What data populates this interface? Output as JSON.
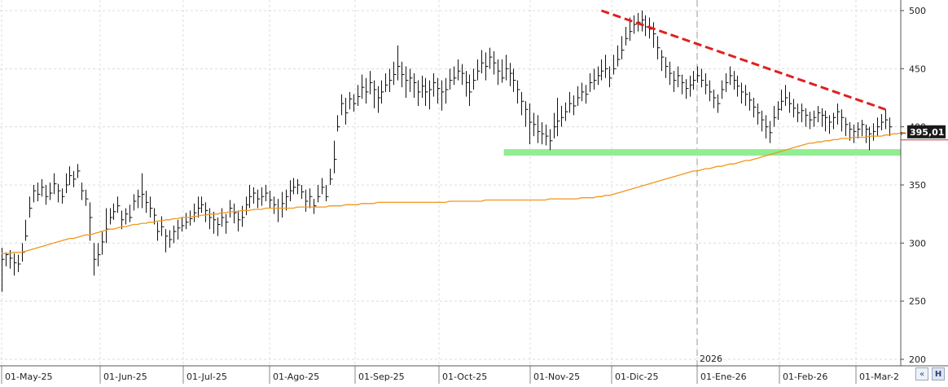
{
  "chart_data": {
    "type": "line",
    "price_style": "ohlc-bars",
    "x_tick_labels": [
      "01-May-25",
      "01-Jun-25",
      "01-Jul-25",
      "01-Ago-25",
      "01-Sep-25",
      "01-Oct-25",
      "01-Nov-25",
      "01-Dic-25",
      "01-Ene-26",
      "01-Feb-26",
      "01-Mar-2"
    ],
    "year_marker": "2026",
    "y_tick_labels": [
      "500",
      "450",
      "400",
      "350",
      "300",
      "250",
      "200"
    ],
    "ylim": [
      200,
      500
    ],
    "grid": true,
    "last_price_label": "395,01",
    "price_bars": [
      [
        286,
        296,
        258
      ],
      [
        290,
        292,
        280
      ],
      [
        287,
        294,
        278
      ],
      [
        283,
        291,
        272
      ],
      [
        282,
        290,
        275
      ],
      [
        292,
        300,
        284
      ],
      [
        306,
        320,
        302
      ],
      [
        330,
        340,
        322
      ],
      [
        345,
        350,
        335
      ],
      [
        342,
        352,
        336
      ],
      [
        348,
        355,
        340
      ],
      [
        340,
        350,
        333
      ],
      [
        343,
        352,
        337
      ],
      [
        351,
        360,
        342
      ],
      [
        345,
        351,
        335
      ],
      [
        340,
        347,
        334
      ],
      [
        350,
        360,
        343
      ],
      [
        358,
        366,
        350
      ],
      [
        355,
        362,
        348
      ],
      [
        362,
        368,
        356
      ],
      [
        345,
        352,
        337
      ],
      [
        338,
        346,
        332
      ],
      [
        322,
        335,
        302
      ],
      [
        286,
        300,
        272
      ],
      [
        290,
        300,
        280
      ],
      [
        301,
        310,
        290
      ],
      [
        312,
        330,
        300
      ],
      [
        322,
        330,
        316
      ],
      [
        327,
        334,
        320
      ],
      [
        332,
        340,
        326
      ],
      [
        320,
        328,
        312
      ],
      [
        325,
        330,
        316
      ],
      [
        322,
        333,
        318
      ],
      [
        336,
        342,
        328
      ],
      [
        340,
        346,
        330
      ],
      [
        342,
        360,
        330
      ],
      [
        335,
        345,
        326
      ],
      [
        330,
        340,
        322
      ],
      [
        324,
        330,
        316
      ],
      [
        310,
        318,
        302
      ],
      [
        314,
        323,
        306
      ],
      [
        306,
        312,
        292
      ],
      [
        303,
        311,
        296
      ],
      [
        310,
        315,
        300
      ],
      [
        313,
        320,
        303
      ],
      [
        315,
        322,
        310
      ],
      [
        318,
        326,
        312
      ],
      [
        321,
        328,
        315
      ],
      [
        326,
        334,
        318
      ],
      [
        330,
        340,
        322
      ],
      [
        333,
        340,
        326
      ],
      [
        328,
        335,
        318
      ],
      [
        322,
        330,
        312
      ],
      [
        320,
        327,
        308
      ],
      [
        316,
        322,
        306
      ],
      [
        322,
        330,
        314
      ],
      [
        318,
        325,
        308
      ],
      [
        330,
        337,
        322
      ],
      [
        326,
        334,
        317
      ],
      [
        320,
        328,
        310
      ],
      [
        322,
        332,
        314
      ],
      [
        333,
        340,
        324
      ],
      [
        340,
        350,
        330
      ],
      [
        343,
        348,
        334
      ],
      [
        338,
        346,
        330
      ],
      [
        340,
        348,
        332
      ],
      [
        343,
        350,
        336
      ],
      [
        337,
        345,
        330
      ],
      [
        333,
        340,
        325
      ],
      [
        330,
        338,
        318
      ],
      [
        334,
        344,
        322
      ],
      [
        340,
        346,
        328
      ],
      [
        345,
        354,
        336
      ],
      [
        348,
        356,
        342
      ],
      [
        350,
        355,
        342
      ],
      [
        344,
        350,
        338
      ],
      [
        336,
        346,
        327
      ],
      [
        340,
        347,
        330
      ],
      [
        332,
        338,
        325
      ],
      [
        340,
        350,
        335
      ],
      [
        348,
        356,
        342
      ],
      [
        340,
        350,
        336
      ],
      [
        355,
        364,
        350
      ],
      [
        372,
        388,
        360
      ],
      [
        400,
        410,
        396
      ],
      [
        420,
        428,
        410
      ],
      [
        412,
        425,
        402
      ],
      [
        424,
        430,
        415
      ],
      [
        420,
        428,
        413
      ],
      [
        426,
        436,
        418
      ],
      [
        434,
        445,
        424
      ],
      [
        430,
        442,
        420
      ],
      [
        438,
        448,
        428
      ],
      [
        432,
        440,
        416
      ],
      [
        425,
        435,
        412
      ],
      [
        430,
        440,
        420
      ],
      [
        436,
        446,
        430
      ],
      [
        440,
        450,
        430
      ],
      [
        445,
        456,
        436
      ],
      [
        452,
        470,
        440
      ],
      [
        445,
        456,
        434
      ],
      [
        440,
        452,
        425
      ],
      [
        442,
        450,
        430
      ],
      [
        438,
        446,
        425
      ],
      [
        430,
        440,
        418
      ],
      [
        435,
        444,
        425
      ],
      [
        430,
        442,
        418
      ],
      [
        432,
        440,
        415
      ],
      [
        438,
        446,
        426
      ],
      [
        433,
        442,
        420
      ],
      [
        430,
        440,
        414
      ],
      [
        432,
        442,
        420
      ],
      [
        440,
        450,
        432
      ],
      [
        442,
        452,
        436
      ],
      [
        448,
        458,
        440
      ],
      [
        446,
        454,
        436
      ],
      [
        438,
        448,
        426
      ],
      [
        430,
        445,
        418
      ],
      [
        440,
        450,
        432
      ],
      [
        448,
        458,
        440
      ],
      [
        455,
        466,
        446
      ],
      [
        452,
        464,
        440
      ],
      [
        460,
        468,
        450
      ],
      [
        455,
        465,
        445
      ],
      [
        448,
        458,
        436
      ],
      [
        442,
        458,
        438
      ],
      [
        450,
        462,
        440
      ],
      [
        446,
        455,
        435
      ],
      [
        440,
        450,
        430
      ],
      [
        432,
        440,
        420
      ],
      [
        422,
        430,
        410
      ],
      [
        415,
        422,
        400
      ],
      [
        404,
        420,
        385
      ],
      [
        402,
        412,
        392
      ],
      [
        396,
        410,
        386
      ],
      [
        394,
        404,
        385
      ],
      [
        392,
        402,
        384
      ],
      [
        388,
        398,
        380
      ],
      [
        400,
        412,
        390
      ],
      [
        405,
        425,
        392
      ],
      [
        408,
        418,
        400
      ],
      [
        413,
        421,
        405
      ],
      [
        420,
        430,
        412
      ],
      [
        418,
        427,
        410
      ],
      [
        425,
        435,
        418
      ],
      [
        430,
        438,
        422
      ],
      [
        428,
        436,
        420
      ],
      [
        438,
        446,
        430
      ],
      [
        440,
        450,
        432
      ],
      [
        444,
        452,
        436
      ],
      [
        448,
        458,
        440
      ],
      [
        450,
        462,
        442
      ],
      [
        442,
        452,
        434
      ],
      [
        450,
        462,
        445
      ],
      [
        458,
        470,
        452
      ],
      [
        466,
        478,
        458
      ],
      [
        476,
        486,
        470
      ],
      [
        482,
        494,
        474
      ],
      [
        488,
        496,
        480
      ],
      [
        490,
        498,
        482
      ],
      [
        492,
        500,
        482
      ],
      [
        486,
        496,
        478
      ],
      [
        484,
        494,
        476
      ],
      [
        480,
        490,
        468
      ],
      [
        468,
        478,
        458
      ],
      [
        460,
        466,
        448
      ],
      [
        452,
        460,
        442
      ],
      [
        446,
        456,
        436
      ],
      [
        440,
        448,
        430
      ],
      [
        444,
        452,
        434
      ],
      [
        438,
        445,
        428
      ],
      [
        433,
        441,
        424
      ],
      [
        436,
        444,
        426
      ],
      [
        440,
        448,
        432
      ],
      [
        444,
        452,
        438
      ],
      [
        440,
        450,
        434
      ],
      [
        436,
        446,
        428
      ],
      [
        430,
        440,
        422
      ],
      [
        425,
        432,
        416
      ],
      [
        420,
        428,
        412
      ],
      [
        432,
        440,
        424
      ],
      [
        438,
        446,
        430
      ],
      [
        444,
        452,
        436
      ],
      [
        440,
        448,
        432
      ],
      [
        435,
        444,
        426
      ],
      [
        430,
        438,
        420
      ],
      [
        428,
        436,
        418
      ],
      [
        423,
        430,
        414
      ],
      [
        417,
        425,
        408
      ],
      [
        412,
        420,
        402
      ],
      [
        406,
        414,
        396
      ],
      [
        400,
        410,
        390
      ],
      [
        395,
        405,
        386
      ],
      [
        408,
        418,
        400
      ],
      [
        415,
        422,
        406
      ],
      [
        422,
        432,
        414
      ],
      [
        425,
        436,
        418
      ],
      [
        420,
        430,
        412
      ],
      [
        416,
        424,
        408
      ],
      [
        412,
        420,
        404
      ],
      [
        414,
        420,
        404
      ],
      [
        410,
        416,
        400
      ],
      [
        406,
        413,
        398
      ],
      [
        408,
        414,
        400
      ],
      [
        412,
        418,
        404
      ],
      [
        410,
        416,
        400
      ],
      [
        408,
        414,
        396
      ],
      [
        404,
        410,
        394
      ],
      [
        408,
        412,
        398
      ],
      [
        413,
        420,
        402
      ],
      [
        408,
        415,
        396
      ],
      [
        402,
        408,
        392
      ],
      [
        398,
        404,
        388
      ],
      [
        396,
        402,
        386
      ],
      [
        398,
        404,
        390
      ],
      [
        402,
        406,
        392
      ],
      [
        398,
        402,
        386
      ],
      [
        394,
        400,
        380
      ],
      [
        396,
        403,
        388
      ],
      [
        400,
        408,
        392
      ],
      [
        404,
        411,
        397
      ],
      [
        406,
        415,
        398
      ],
      [
        400,
        408,
        392
      ]
    ],
    "series": [
      {
        "color": "#f0961e",
        "values": [
          291,
          291,
          291,
          292,
          292,
          292,
          293,
          294,
          295,
          296,
          297,
          298,
          299,
          300,
          301,
          302,
          303,
          304,
          304,
          305,
          306,
          307,
          307,
          308,
          309,
          310,
          311,
          312,
          312,
          313,
          314,
          314,
          315,
          316,
          316,
          317,
          317,
          318,
          318,
          319,
          319,
          320,
          320,
          321,
          321,
          322,
          322,
          322,
          323,
          323,
          324,
          324,
          325,
          325,
          325,
          326,
          326,
          327,
          327,
          327,
          328,
          328,
          328,
          329,
          329,
          329,
          330,
          330,
          330,
          330,
          330,
          330,
          330,
          330,
          331,
          331,
          331,
          331,
          331,
          331,
          331,
          331,
          332,
          332,
          332,
          332,
          333,
          333,
          333,
          333,
          334,
          334,
          334,
          334,
          335,
          335,
          335,
          335,
          335,
          335,
          335,
          335,
          335,
          335,
          335,
          335,
          335,
          335,
          335,
          335,
          335,
          335,
          336,
          336,
          336,
          336,
          336,
          336,
          336,
          336,
          336,
          337,
          337,
          337,
          337,
          337,
          337,
          337,
          337,
          337,
          337,
          337,
          337,
          337,
          337,
          337,
          337,
          338,
          338,
          338,
          338,
          338,
          338,
          338,
          338,
          339,
          339,
          339,
          339,
          340,
          340,
          341,
          341,
          342,
          343,
          344,
          345,
          346,
          347,
          348,
          349,
          350,
          351,
          352,
          353,
          354,
          355,
          356,
          357,
          358,
          359,
          360,
          361,
          362,
          362,
          363,
          364,
          364,
          365,
          366,
          366,
          367,
          368,
          368,
          369,
          370,
          371,
          371,
          372,
          373,
          374,
          375,
          376,
          377,
          378,
          379,
          380,
          381,
          382,
          383,
          384,
          385,
          386,
          386,
          387,
          387,
          388,
          388,
          389,
          389,
          390,
          390,
          390,
          391,
          391,
          391,
          391,
          392,
          392,
          392,
          392,
          393,
          393,
          394,
          394,
          395,
          395
        ]
      }
    ],
    "annotations": [
      {
        "kind": "resistance-trendline",
        "color": "#e02020",
        "style": "dashed",
        "from": [
          150,
          500
        ],
        "to": [
          221,
          415
        ]
      },
      {
        "kind": "support-zone",
        "color": "#90ee90",
        "from": [
          126,
          378
        ],
        "to": [
          224,
          378
        ]
      }
    ]
  },
  "toolbar": {
    "left_button_glyph": "«",
    "save_button_glyph": "H"
  }
}
